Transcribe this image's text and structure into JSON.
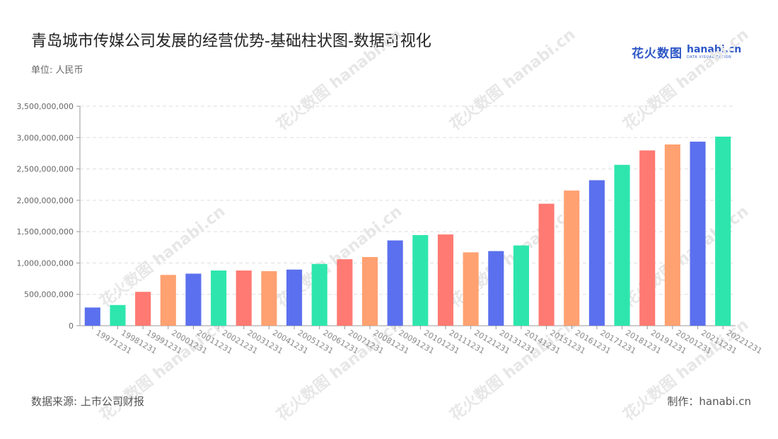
{
  "title": "青岛城市传媒公司发展的经营优势-基础柱状图-数据可视化",
  "unit": "单位: 人民币",
  "source": "数据来源: 上市公司财报",
  "credit": "制作：hanabi.cn",
  "logo": {
    "cn": "花火数图",
    "en": "hanabi.cn",
    "sub": "DATA VISUALIZATION"
  },
  "watermark": "花火数图 hanabi.cn",
  "colors": {
    "palette": [
      "#5b70ee",
      "#2ee6ad",
      "#ff7a72",
      "#ffa171"
    ],
    "grid": "#dddddd",
    "axis": "#999999"
  },
  "chart_data": {
    "type": "bar",
    "categories": [
      "19971231",
      "19981231",
      "19991231",
      "20001231",
      "20011231",
      "20021231",
      "20031231",
      "20041231",
      "20051231",
      "20061231",
      "20071231",
      "20081231",
      "20091231",
      "20101231",
      "20111231",
      "20121231",
      "20131231",
      "20141231",
      "20151231",
      "20161231",
      "20171231",
      "20181231",
      "20191231",
      "20201231",
      "20211231",
      "20221231"
    ],
    "values": [
      290000000,
      330000000,
      540000000,
      810000000,
      830000000,
      880000000,
      880000000,
      870000000,
      895000000,
      985000000,
      1060000000,
      1095000000,
      1360000000,
      1445000000,
      1455000000,
      1170000000,
      1190000000,
      1280000000,
      1945000000,
      2155000000,
      2320000000,
      2565000000,
      2795000000,
      2890000000,
      2935000000,
      3015000000
    ],
    "colors": [
      "#5b70ee",
      "#2ee6ad",
      "#ff7a72",
      "#ffa171",
      "#5b70ee",
      "#2ee6ad",
      "#ff7a72",
      "#ffa171",
      "#5b70ee",
      "#2ee6ad",
      "#ff7a72",
      "#ffa171",
      "#5b70ee",
      "#2ee6ad",
      "#ff7a72",
      "#ffa171",
      "#5b70ee",
      "#2ee6ad",
      "#ff7a72",
      "#ffa171",
      "#5b70ee",
      "#2ee6ad",
      "#ff7a72",
      "#ffa171",
      "#5b70ee",
      "#2ee6ad"
    ],
    "yticks": [
      "0",
      "500,000,000",
      "1,000,000,000",
      "1,500,000,000",
      "2,000,000,000",
      "2,500,000,000",
      "3,000,000,000",
      "3,500,000,000"
    ],
    "ylim": [
      0,
      3500000000
    ],
    "grid": true
  }
}
